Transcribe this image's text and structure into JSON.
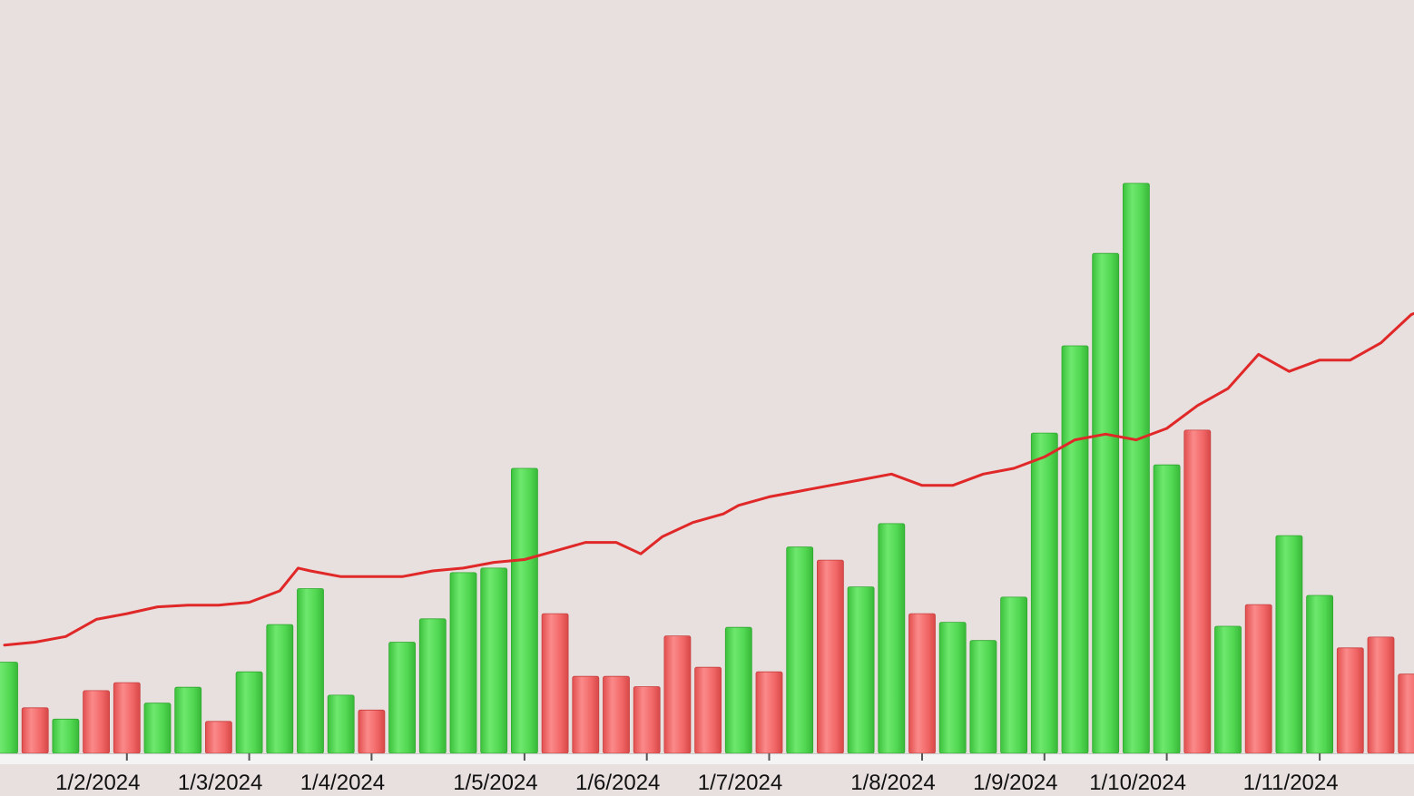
{
  "colors": {
    "background": "#e8dfdf",
    "up_bar": "#4fd64f",
    "down_bar": "#f06565",
    "line": "#e02828",
    "axis": "#cfcfcf"
  },
  "chart_data": {
    "type": "bar",
    "note_types": "volume bars (green = up, red = down) with a price line overlay",
    "grid": false,
    "legend": "none",
    "ylim": [
      0,
      100
    ],
    "x_ticks": [
      {
        "label": "1/2/2024",
        "index": 4
      },
      {
        "label": "1/3/2024",
        "index": 8
      },
      {
        "label": "1/4/2024",
        "index": 12
      },
      {
        "label": "1/5/2024",
        "index": 17
      },
      {
        "label": "1/6/2024",
        "index": 21
      },
      {
        "label": "1/7/2024",
        "index": 25
      },
      {
        "label": "1/8/2024",
        "index": 30
      },
      {
        "label": "1/9/2024",
        "index": 34
      },
      {
        "label": "1/10/2024",
        "index": 38
      },
      {
        "label": "1/11/2024",
        "index": 43
      }
    ],
    "bars": [
      {
        "value": 16,
        "direction": "up"
      },
      {
        "value": 8,
        "direction": "down"
      },
      {
        "value": 6,
        "direction": "up"
      },
      {
        "value": 11,
        "direction": "down"
      },
      {
        "value": 12.4,
        "direction": "down"
      },
      {
        "value": 8.8,
        "direction": "up"
      },
      {
        "value": 11.6,
        "direction": "up"
      },
      {
        "value": 5.6,
        "direction": "down"
      },
      {
        "value": 14.3,
        "direction": "up"
      },
      {
        "value": 22.6,
        "direction": "up"
      },
      {
        "value": 28.9,
        "direction": "up"
      },
      {
        "value": 10.2,
        "direction": "up"
      },
      {
        "value": 7.6,
        "direction": "down"
      },
      {
        "value": 19.5,
        "direction": "up"
      },
      {
        "value": 23.6,
        "direction": "up"
      },
      {
        "value": 31.7,
        "direction": "up"
      },
      {
        "value": 32.5,
        "direction": "up"
      },
      {
        "value": 50.0,
        "direction": "up"
      },
      {
        "value": 24.5,
        "direction": "down"
      },
      {
        "value": 13.5,
        "direction": "down"
      },
      {
        "value": 13.5,
        "direction": "down"
      },
      {
        "value": 11.7,
        "direction": "down"
      },
      {
        "value": 20.6,
        "direction": "down"
      },
      {
        "value": 15.1,
        "direction": "down"
      },
      {
        "value": 22.1,
        "direction": "up"
      },
      {
        "value": 14.3,
        "direction": "down"
      },
      {
        "value": 36.2,
        "direction": "up"
      },
      {
        "value": 33.9,
        "direction": "down"
      },
      {
        "value": 29.2,
        "direction": "up"
      },
      {
        "value": 40.3,
        "direction": "up"
      },
      {
        "value": 24.5,
        "direction": "down"
      },
      {
        "value": 23.0,
        "direction": "up"
      },
      {
        "value": 19.8,
        "direction": "up"
      },
      {
        "value": 27.4,
        "direction": "up"
      },
      {
        "value": 56.2,
        "direction": "up"
      },
      {
        "value": 71.5,
        "direction": "up"
      },
      {
        "value": 87.7,
        "direction": "up"
      },
      {
        "value": 100.0,
        "direction": "up"
      },
      {
        "value": 50.6,
        "direction": "up"
      },
      {
        "value": 56.7,
        "direction": "down"
      },
      {
        "value": 22.3,
        "direction": "up"
      },
      {
        "value": 26.1,
        "direction": "down"
      },
      {
        "value": 38.2,
        "direction": "up"
      },
      {
        "value": 27.7,
        "direction": "up"
      },
      {
        "value": 18.5,
        "direction": "down"
      },
      {
        "value": 20.4,
        "direction": "down"
      },
      {
        "value": 13.9,
        "direction": "down"
      }
    ],
    "line": [
      [
        0,
        19
      ],
      [
        1.0,
        19.5
      ],
      [
        2.0,
        20.5
      ],
      [
        3.0,
        23.5
      ],
      [
        4.0,
        24.5
      ],
      [
        5.0,
        25.7
      ],
      [
        6.0,
        26
      ],
      [
        7.0,
        26
      ],
      [
        8.0,
        26.5
      ],
      [
        9.0,
        28.5
      ],
      [
        9.6,
        32.5
      ],
      [
        10.0,
        32
      ],
      [
        11.0,
        31
      ],
      [
        12.0,
        31
      ],
      [
        13.0,
        31
      ],
      [
        14.0,
        32
      ],
      [
        15.0,
        32.5
      ],
      [
        16.0,
        33.5
      ],
      [
        17.0,
        34
      ],
      [
        18.0,
        35.5
      ],
      [
        19.0,
        37
      ],
      [
        20.0,
        37
      ],
      [
        20.8,
        35
      ],
      [
        21.5,
        38
      ],
      [
        22.5,
        40.5
      ],
      [
        23.5,
        42
      ],
      [
        24.0,
        43.5
      ],
      [
        25.0,
        45
      ],
      [
        26.0,
        46
      ],
      [
        27.0,
        47
      ],
      [
        28.0,
        48
      ],
      [
        29.0,
        49
      ],
      [
        30.0,
        47
      ],
      [
        31.0,
        47
      ],
      [
        32.0,
        49
      ],
      [
        33.0,
        50
      ],
      [
        34.0,
        52
      ],
      [
        35.0,
        55
      ],
      [
        36.0,
        56
      ],
      [
        37.0,
        55
      ],
      [
        38.0,
        57
      ],
      [
        39.0,
        61
      ],
      [
        40.0,
        64
      ],
      [
        41.0,
        70
      ],
      [
        42.0,
        67
      ],
      [
        43.0,
        69
      ],
      [
        44.0,
        69
      ],
      [
        45.0,
        72
      ],
      [
        46.0,
        77
      ],
      [
        46.8,
        78.5
      ]
    ]
  }
}
